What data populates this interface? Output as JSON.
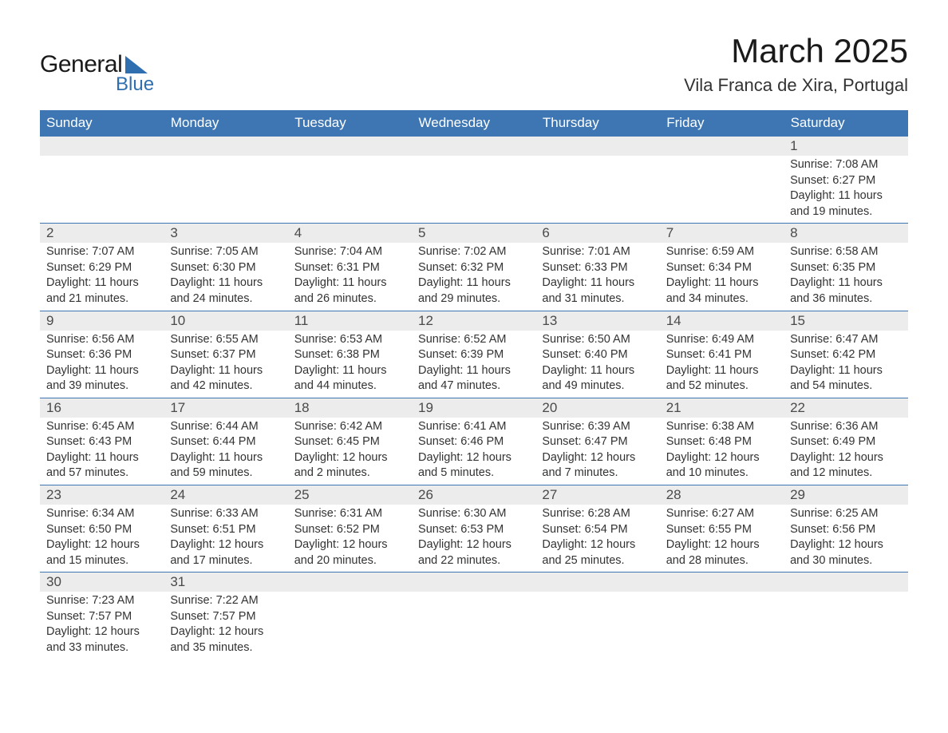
{
  "logo": {
    "text1": "General",
    "text2": "Blue"
  },
  "title": "March 2025",
  "location": "Vila Franca de Xira, Portugal",
  "weekdays": [
    "Sunday",
    "Monday",
    "Tuesday",
    "Wednesday",
    "Thursday",
    "Friday",
    "Saturday"
  ],
  "colors": {
    "header_bg": "#3d76b3",
    "header_text": "#ffffff",
    "daynum_bg": "#ececec",
    "border": "#3d76b3",
    "text": "#333333",
    "logo_blue": "#2f6fb0"
  },
  "weeks": [
    [
      null,
      null,
      null,
      null,
      null,
      null,
      {
        "day": "1",
        "sunrise": "Sunrise: 7:08 AM",
        "sunset": "Sunset: 6:27 PM",
        "daylight1": "Daylight: 11 hours",
        "daylight2": "and 19 minutes."
      }
    ],
    [
      {
        "day": "2",
        "sunrise": "Sunrise: 7:07 AM",
        "sunset": "Sunset: 6:29 PM",
        "daylight1": "Daylight: 11 hours",
        "daylight2": "and 21 minutes."
      },
      {
        "day": "3",
        "sunrise": "Sunrise: 7:05 AM",
        "sunset": "Sunset: 6:30 PM",
        "daylight1": "Daylight: 11 hours",
        "daylight2": "and 24 minutes."
      },
      {
        "day": "4",
        "sunrise": "Sunrise: 7:04 AM",
        "sunset": "Sunset: 6:31 PM",
        "daylight1": "Daylight: 11 hours",
        "daylight2": "and 26 minutes."
      },
      {
        "day": "5",
        "sunrise": "Sunrise: 7:02 AM",
        "sunset": "Sunset: 6:32 PM",
        "daylight1": "Daylight: 11 hours",
        "daylight2": "and 29 minutes."
      },
      {
        "day": "6",
        "sunrise": "Sunrise: 7:01 AM",
        "sunset": "Sunset: 6:33 PM",
        "daylight1": "Daylight: 11 hours",
        "daylight2": "and 31 minutes."
      },
      {
        "day": "7",
        "sunrise": "Sunrise: 6:59 AM",
        "sunset": "Sunset: 6:34 PM",
        "daylight1": "Daylight: 11 hours",
        "daylight2": "and 34 minutes."
      },
      {
        "day": "8",
        "sunrise": "Sunrise: 6:58 AM",
        "sunset": "Sunset: 6:35 PM",
        "daylight1": "Daylight: 11 hours",
        "daylight2": "and 36 minutes."
      }
    ],
    [
      {
        "day": "9",
        "sunrise": "Sunrise: 6:56 AM",
        "sunset": "Sunset: 6:36 PM",
        "daylight1": "Daylight: 11 hours",
        "daylight2": "and 39 minutes."
      },
      {
        "day": "10",
        "sunrise": "Sunrise: 6:55 AM",
        "sunset": "Sunset: 6:37 PM",
        "daylight1": "Daylight: 11 hours",
        "daylight2": "and 42 minutes."
      },
      {
        "day": "11",
        "sunrise": "Sunrise: 6:53 AM",
        "sunset": "Sunset: 6:38 PM",
        "daylight1": "Daylight: 11 hours",
        "daylight2": "and 44 minutes."
      },
      {
        "day": "12",
        "sunrise": "Sunrise: 6:52 AM",
        "sunset": "Sunset: 6:39 PM",
        "daylight1": "Daylight: 11 hours",
        "daylight2": "and 47 minutes."
      },
      {
        "day": "13",
        "sunrise": "Sunrise: 6:50 AM",
        "sunset": "Sunset: 6:40 PM",
        "daylight1": "Daylight: 11 hours",
        "daylight2": "and 49 minutes."
      },
      {
        "day": "14",
        "sunrise": "Sunrise: 6:49 AM",
        "sunset": "Sunset: 6:41 PM",
        "daylight1": "Daylight: 11 hours",
        "daylight2": "and 52 minutes."
      },
      {
        "day": "15",
        "sunrise": "Sunrise: 6:47 AM",
        "sunset": "Sunset: 6:42 PM",
        "daylight1": "Daylight: 11 hours",
        "daylight2": "and 54 minutes."
      }
    ],
    [
      {
        "day": "16",
        "sunrise": "Sunrise: 6:45 AM",
        "sunset": "Sunset: 6:43 PM",
        "daylight1": "Daylight: 11 hours",
        "daylight2": "and 57 minutes."
      },
      {
        "day": "17",
        "sunrise": "Sunrise: 6:44 AM",
        "sunset": "Sunset: 6:44 PM",
        "daylight1": "Daylight: 11 hours",
        "daylight2": "and 59 minutes."
      },
      {
        "day": "18",
        "sunrise": "Sunrise: 6:42 AM",
        "sunset": "Sunset: 6:45 PM",
        "daylight1": "Daylight: 12 hours",
        "daylight2": "and 2 minutes."
      },
      {
        "day": "19",
        "sunrise": "Sunrise: 6:41 AM",
        "sunset": "Sunset: 6:46 PM",
        "daylight1": "Daylight: 12 hours",
        "daylight2": "and 5 minutes."
      },
      {
        "day": "20",
        "sunrise": "Sunrise: 6:39 AM",
        "sunset": "Sunset: 6:47 PM",
        "daylight1": "Daylight: 12 hours",
        "daylight2": "and 7 minutes."
      },
      {
        "day": "21",
        "sunrise": "Sunrise: 6:38 AM",
        "sunset": "Sunset: 6:48 PM",
        "daylight1": "Daylight: 12 hours",
        "daylight2": "and 10 minutes."
      },
      {
        "day": "22",
        "sunrise": "Sunrise: 6:36 AM",
        "sunset": "Sunset: 6:49 PM",
        "daylight1": "Daylight: 12 hours",
        "daylight2": "and 12 minutes."
      }
    ],
    [
      {
        "day": "23",
        "sunrise": "Sunrise: 6:34 AM",
        "sunset": "Sunset: 6:50 PM",
        "daylight1": "Daylight: 12 hours",
        "daylight2": "and 15 minutes."
      },
      {
        "day": "24",
        "sunrise": "Sunrise: 6:33 AM",
        "sunset": "Sunset: 6:51 PM",
        "daylight1": "Daylight: 12 hours",
        "daylight2": "and 17 minutes."
      },
      {
        "day": "25",
        "sunrise": "Sunrise: 6:31 AM",
        "sunset": "Sunset: 6:52 PM",
        "daylight1": "Daylight: 12 hours",
        "daylight2": "and 20 minutes."
      },
      {
        "day": "26",
        "sunrise": "Sunrise: 6:30 AM",
        "sunset": "Sunset: 6:53 PM",
        "daylight1": "Daylight: 12 hours",
        "daylight2": "and 22 minutes."
      },
      {
        "day": "27",
        "sunrise": "Sunrise: 6:28 AM",
        "sunset": "Sunset: 6:54 PM",
        "daylight1": "Daylight: 12 hours",
        "daylight2": "and 25 minutes."
      },
      {
        "day": "28",
        "sunrise": "Sunrise: 6:27 AM",
        "sunset": "Sunset: 6:55 PM",
        "daylight1": "Daylight: 12 hours",
        "daylight2": "and 28 minutes."
      },
      {
        "day": "29",
        "sunrise": "Sunrise: 6:25 AM",
        "sunset": "Sunset: 6:56 PM",
        "daylight1": "Daylight: 12 hours",
        "daylight2": "and 30 minutes."
      }
    ],
    [
      {
        "day": "30",
        "sunrise": "Sunrise: 7:23 AM",
        "sunset": "Sunset: 7:57 PM",
        "daylight1": "Daylight: 12 hours",
        "daylight2": "and 33 minutes."
      },
      {
        "day": "31",
        "sunrise": "Sunrise: 7:22 AM",
        "sunset": "Sunset: 7:57 PM",
        "daylight1": "Daylight: 12 hours",
        "daylight2": "and 35 minutes."
      },
      null,
      null,
      null,
      null,
      null
    ]
  ]
}
